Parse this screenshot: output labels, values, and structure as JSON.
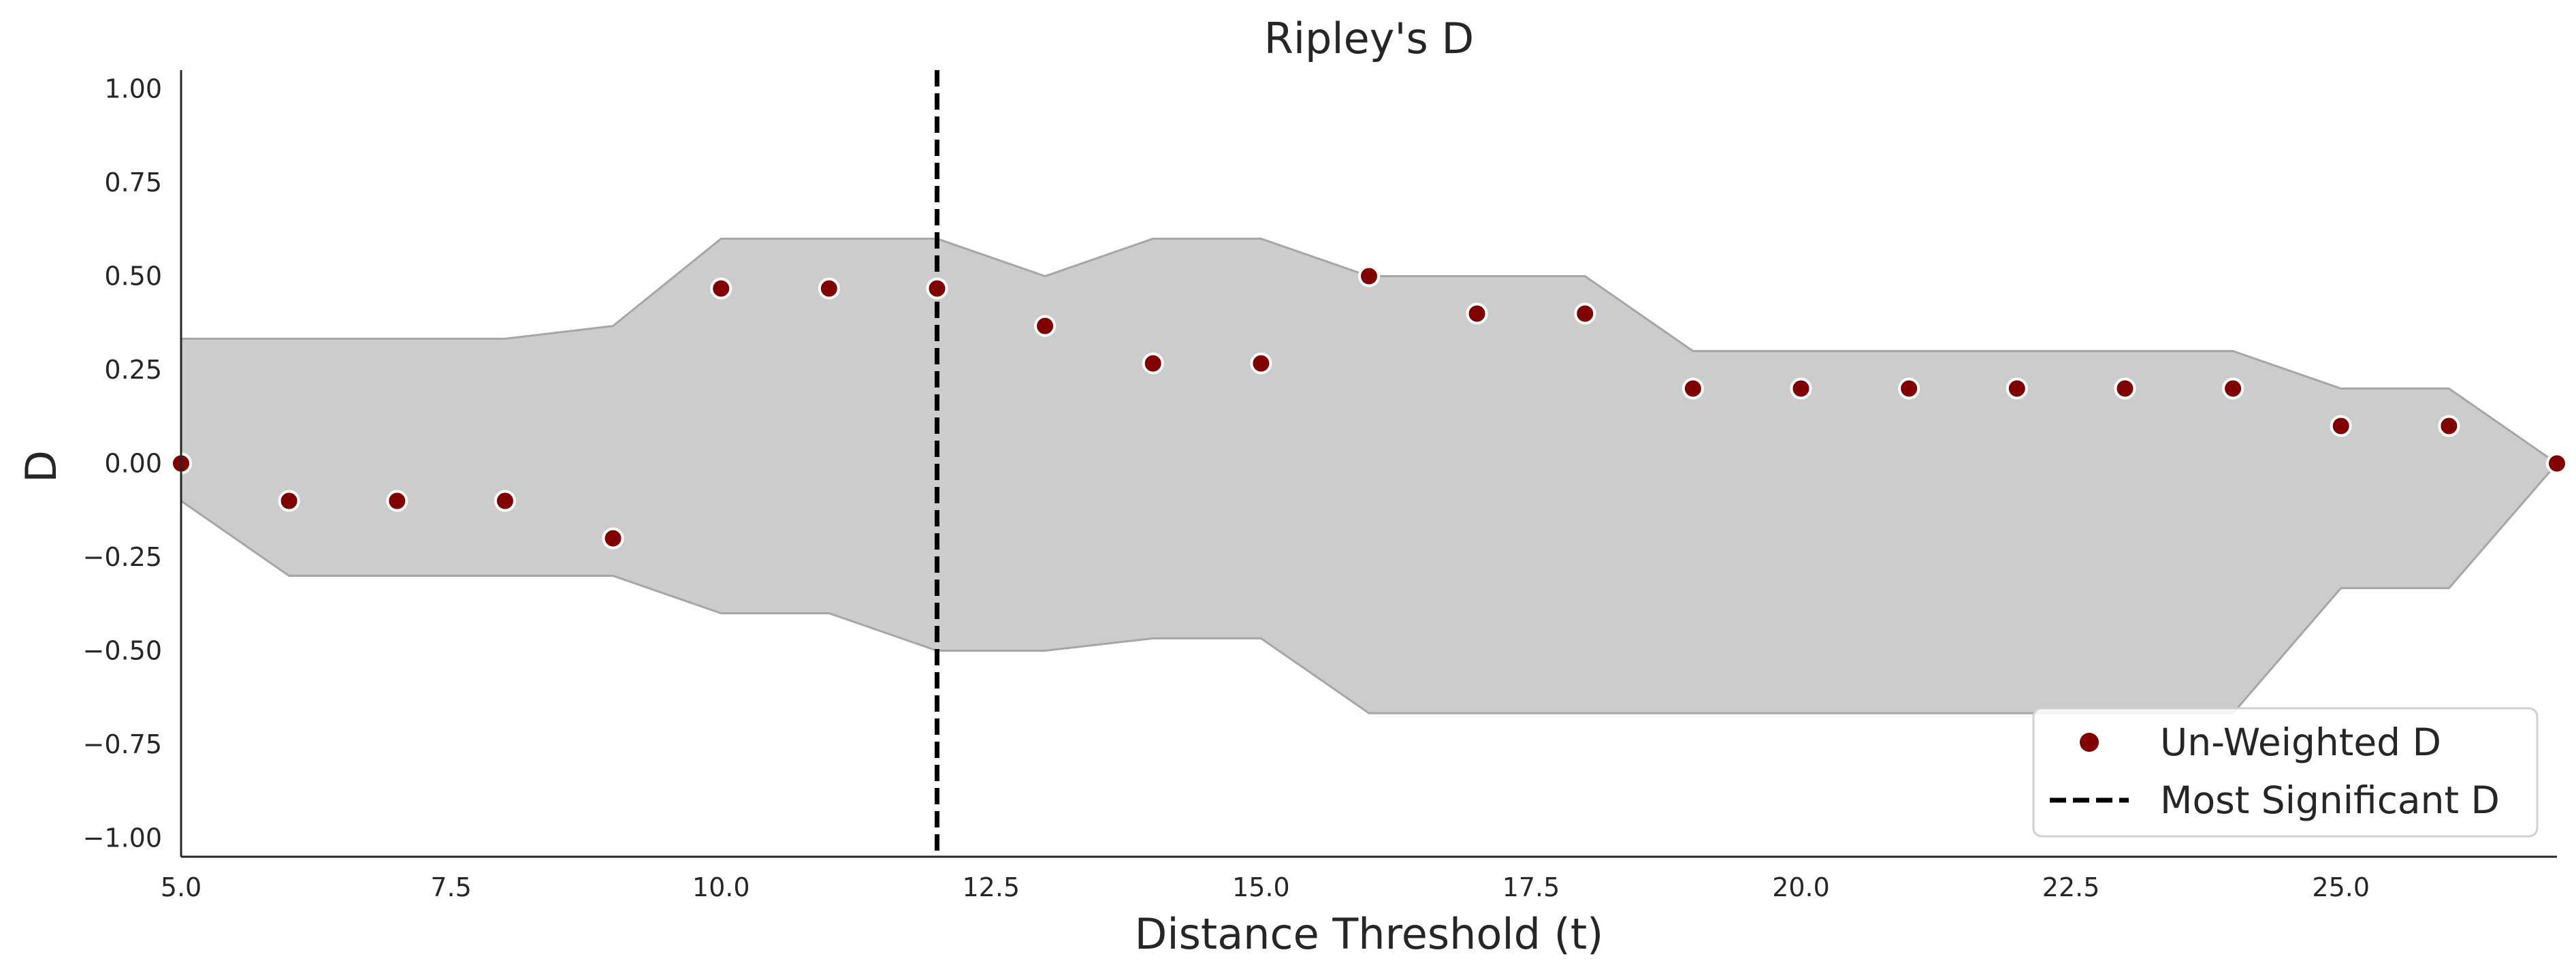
{
  "chart_data": {
    "type": "scatter",
    "title": "Ripley's D",
    "xlabel": "Distance Threshold (t)",
    "ylabel": "D",
    "xlim": [
      5,
      27
    ],
    "ylim": [
      -1.05,
      1.05
    ],
    "x_ticks": [
      5,
      7.5,
      10,
      12.5,
      15,
      17.5,
      20,
      22.5,
      25
    ],
    "x_tick_labels": [
      "5.0",
      "7.5",
      "10.0",
      "12.5",
      "15.0",
      "17.5",
      "20.0",
      "22.5",
      "25.0"
    ],
    "y_ticks": [
      1,
      0.75,
      0.5,
      0.25,
      0,
      -0.25,
      -0.5,
      -0.75,
      -1
    ],
    "y_tick_labels": [
      "1.00",
      "0.75",
      "0.50",
      "0.25",
      "0.00",
      "−0.25",
      "−0.50",
      "−0.75",
      "−1.00"
    ],
    "grid": false,
    "legend_position": "bottom-right",
    "series": [
      {
        "name": "Un-Weighted D",
        "kind": "points",
        "color": "#800000",
        "x": [
          5,
          6,
          7,
          8,
          9,
          10,
          11,
          12,
          13,
          14,
          15,
          16,
          17,
          18,
          19,
          20,
          21,
          22,
          23,
          24,
          25,
          26,
          27
        ],
        "y": [
          0,
          -0.1,
          -0.1,
          -0.1,
          -0.2,
          0.467,
          0.467,
          0.467,
          0.367,
          0.267,
          0.267,
          0.5,
          0.4,
          0.4,
          0.2,
          0.2,
          0.2,
          0.2,
          0.2,
          0.2,
          0.1,
          0.1,
          0
        ]
      },
      {
        "name": "Most Significant D",
        "kind": "vline",
        "color": "#000000",
        "x": 12
      }
    ],
    "envelope": {
      "color": "#cccccc",
      "edge_color": "#a6a6a6",
      "x": [
        5,
        6,
        7,
        8,
        9,
        10,
        11,
        12,
        13,
        14,
        15,
        16,
        17,
        18,
        19,
        20,
        21,
        22,
        23,
        24,
        25,
        26,
        27
      ],
      "upper": [
        0.333,
        0.333,
        0.333,
        0.333,
        0.367,
        0.6,
        0.6,
        0.6,
        0.5,
        0.6,
        0.6,
        0.5,
        0.5,
        0.5,
        0.3,
        0.3,
        0.3,
        0.3,
        0.3,
        0.3,
        0.2,
        0.2,
        0
      ],
      "lower": [
        -0.1,
        -0.3,
        -0.3,
        -0.3,
        -0.3,
        -0.4,
        -0.4,
        -0.5,
        -0.5,
        -0.467,
        -0.467,
        -0.667,
        -0.667,
        -0.667,
        -0.667,
        -0.667,
        -0.667,
        -0.667,
        -0.667,
        -0.667,
        -0.333,
        -0.333,
        0
      ]
    }
  }
}
